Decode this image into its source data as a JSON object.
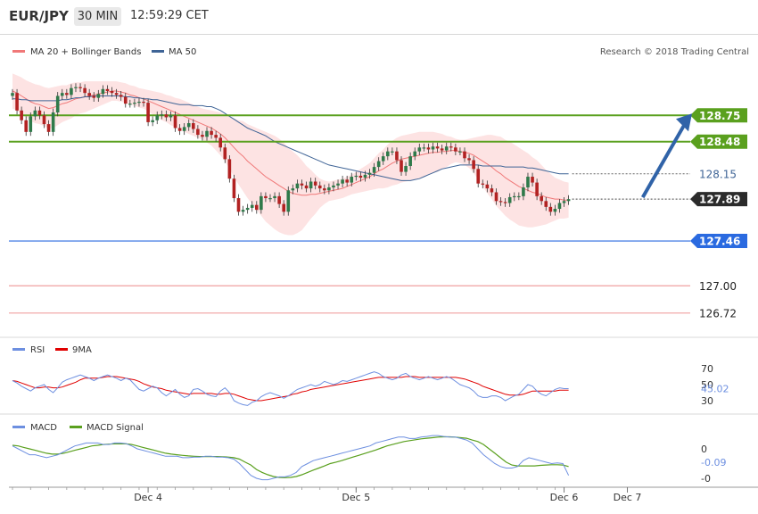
{
  "header": {
    "pair": "EUR/JPY",
    "timeframe": "30 MIN",
    "time": "12:59:29 CET"
  },
  "legend_main": {
    "bb_label": "MA 20 + Bollinger Bands",
    "ma50_label": "MA 50",
    "copyright": "Research © 2018 Trading Central"
  },
  "legend_rsi": {
    "rsi_label": "RSI",
    "ma_label": "9MA"
  },
  "legend_macd": {
    "macd_label": "MACD",
    "signal_label": "MACD Signal"
  },
  "colors": {
    "bb": "#f07878",
    "bb_fill": "#fde3e3",
    "ma50": "#3f6496",
    "bull": "#2f7a4a",
    "bear": "#b22222",
    "green_level": "#5aa01e",
    "blue_level": "#2a6ae0",
    "red_level": "#f0a0a0",
    "arrow": "#3063a8",
    "last": "#2b2b2b",
    "rsi": "#6d8fe0",
    "rsi_ma": "#e00000",
    "macd": "#6d8fe0",
    "macd_signal": "#5aa01e",
    "axis_text": "#333333"
  },
  "chart_data": [
    {
      "type": "candlestick",
      "title": "EUR/JPY",
      "series_names": [
        "MA 20 + Bollinger Bands",
        "MA 50"
      ],
      "levels": [
        {
          "value": 128.75,
          "label": "128.75",
          "style": "green"
        },
        {
          "value": 128.48,
          "label": "128.48",
          "style": "green"
        },
        {
          "value": 128.15,
          "label": "128.15",
          "style": "ma50"
        },
        {
          "value": 127.89,
          "label": "127.89",
          "style": "last"
        },
        {
          "value": 127.46,
          "label": "127.46",
          "style": "blue"
        },
        {
          "value": 127.0,
          "label": "127.00",
          "style": "red"
        },
        {
          "value": 126.72,
          "label": "126.72",
          "style": "red"
        }
      ],
      "arrow": {
        "from_bar": 139,
        "from_price": 127.89,
        "to_price": 128.75
      },
      "ylim": [
        126.6,
        129.0
      ],
      "close": [
        128.98,
        128.8,
        128.7,
        128.58,
        128.74,
        128.8,
        128.75,
        128.66,
        128.58,
        128.78,
        128.95,
        128.98,
        128.96,
        129.03,
        129.04,
        129.03,
        128.98,
        128.95,
        128.93,
        128.97,
        129.02,
        129.0,
        128.98,
        128.96,
        128.94,
        128.87,
        128.87,
        128.88,
        128.89,
        128.88,
        128.68,
        128.7,
        128.75,
        128.76,
        128.73,
        128.75,
        128.62,
        128.59,
        128.63,
        128.67,
        128.61,
        128.55,
        128.53,
        128.59,
        128.55,
        128.52,
        128.42,
        128.3,
        128.1,
        127.9,
        127.76,
        127.78,
        127.8,
        127.83,
        127.78,
        127.92,
        127.9,
        127.9,
        127.92,
        127.84,
        127.76,
        127.98,
        128.0,
        128.05,
        128.03,
        128.0,
        128.07,
        128.03,
        128.0,
        127.98,
        128.01,
        128.03,
        128.05,
        128.09,
        128.06,
        128.12,
        128.13,
        128.11,
        128.14,
        128.16,
        128.22,
        128.28,
        128.33,
        128.38,
        128.38,
        128.29,
        128.17,
        128.23,
        128.33,
        128.38,
        128.42,
        128.42,
        128.4,
        128.43,
        128.41,
        128.39,
        128.43,
        128.42,
        128.38,
        128.38,
        128.31,
        128.29,
        128.2,
        128.05,
        128.04,
        128.0,
        127.96,
        127.87,
        127.86,
        127.85,
        127.91,
        127.92,
        127.92,
        128.01,
        128.12,
        128.06,
        127.92,
        127.87,
        127.81,
        127.76,
        127.79,
        127.85,
        127.87,
        127.89
      ],
      "bb_mid": [
        129.0,
        128.98,
        128.95,
        128.92,
        128.89,
        128.87,
        128.86,
        128.84,
        128.82,
        128.83,
        128.85,
        128.87,
        128.88,
        128.9,
        128.92,
        128.93,
        128.94,
        128.95,
        128.96,
        128.97,
        128.98,
        128.99,
        129.0,
        129.0,
        128.99,
        128.98,
        128.96,
        128.95,
        128.93,
        128.92,
        128.9,
        128.88,
        128.86,
        128.84,
        128.82,
        128.8,
        128.78,
        128.76,
        128.74,
        128.72,
        128.7,
        128.68,
        128.66,
        128.64,
        128.62,
        128.59,
        128.56,
        128.52,
        128.47,
        128.42,
        128.37,
        128.33,
        128.28,
        128.24,
        128.2,
        128.16,
        128.12,
        128.09,
        128.06,
        128.03,
        128.0,
        127.97,
        127.95,
        127.94,
        127.93,
        127.93,
        127.94,
        127.94,
        127.95,
        127.96,
        127.97,
        127.98,
        127.99,
        128.0,
        128.02,
        128.04,
        128.06,
        128.08,
        128.1,
        128.12,
        128.15,
        128.18,
        128.2,
        128.23,
        128.26,
        128.28,
        128.3,
        128.31,
        128.32,
        128.33,
        128.34,
        128.35,
        128.36,
        128.37,
        128.37,
        128.38,
        128.38,
        128.39,
        128.39,
        128.38,
        128.37,
        128.36,
        128.34,
        128.31,
        128.28,
        128.25,
        128.22,
        128.18,
        128.15,
        128.11,
        128.08,
        128.05,
        128.02,
        128.0,
        127.98,
        127.96,
        127.95,
        127.93,
        127.91,
        127.9,
        127.89,
        127.89,
        127.88,
        127.88
      ],
      "bb_width": [
        0.18,
        0.18,
        0.19,
        0.19,
        0.2,
        0.2,
        0.2,
        0.2,
        0.21,
        0.21,
        0.2,
        0.19,
        0.18,
        0.18,
        0.17,
        0.16,
        0.16,
        0.15,
        0.14,
        0.13,
        0.12,
        0.11,
        0.1,
        0.1,
        0.1,
        0.1,
        0.1,
        0.1,
        0.1,
        0.1,
        0.11,
        0.12,
        0.13,
        0.14,
        0.14,
        0.15,
        0.15,
        0.16,
        0.16,
        0.16,
        0.16,
        0.16,
        0.16,
        0.17,
        0.18,
        0.2,
        0.22,
        0.24,
        0.27,
        0.3,
        0.33,
        0.36,
        0.38,
        0.4,
        0.42,
        0.44,
        0.46,
        0.47,
        0.48,
        0.48,
        0.47,
        0.45,
        0.43,
        0.4,
        0.36,
        0.3,
        0.25,
        0.2,
        0.15,
        0.12,
        0.1,
        0.1,
        0.1,
        0.1,
        0.1,
        0.1,
        0.11,
        0.12,
        0.13,
        0.14,
        0.16,
        0.18,
        0.2,
        0.22,
        0.23,
        0.24,
        0.24,
        0.24,
        0.24,
        0.24,
        0.24,
        0.23,
        0.22,
        0.21,
        0.2,
        0.18,
        0.16,
        0.14,
        0.12,
        0.12,
        0.13,
        0.15,
        0.18,
        0.22,
        0.26,
        0.3,
        0.33,
        0.36,
        0.38,
        0.39,
        0.4,
        0.4,
        0.4,
        0.39,
        0.38,
        0.36,
        0.34,
        0.31,
        0.28,
        0.25,
        0.22,
        0.2,
        0.19,
        0.18
      ],
      "ma50": [
        128.92,
        128.92,
        128.91,
        128.91,
        128.9,
        128.9,
        128.9,
        128.9,
        128.9,
        128.9,
        128.9,
        128.91,
        128.91,
        128.92,
        128.93,
        128.93,
        128.94,
        128.94,
        128.95,
        128.95,
        128.95,
        128.95,
        128.95,
        128.95,
        128.95,
        128.94,
        128.94,
        128.93,
        128.93,
        128.92,
        128.92,
        128.91,
        128.91,
        128.9,
        128.89,
        128.88,
        128.87,
        128.86,
        128.86,
        128.86,
        128.85,
        128.85,
        128.85,
        128.84,
        128.84,
        128.82,
        128.8,
        128.77,
        128.74,
        128.71,
        128.68,
        128.65,
        128.62,
        128.6,
        128.58,
        128.56,
        128.54,
        128.51,
        128.48,
        128.46,
        128.44,
        128.42,
        128.4,
        128.38,
        128.36,
        128.34,
        128.32,
        128.3,
        128.28,
        128.26,
        128.24,
        128.23,
        128.22,
        128.21,
        128.2,
        128.19,
        128.18,
        128.17,
        128.16,
        128.15,
        128.14,
        128.13,
        128.12,
        128.11,
        128.1,
        128.09,
        128.08,
        128.08,
        128.08,
        128.09,
        128.1,
        128.12,
        128.14,
        128.16,
        128.18,
        128.2,
        128.21,
        128.22,
        128.23,
        128.24,
        128.24,
        128.24,
        128.24,
        128.24,
        128.23,
        128.23,
        128.23,
        128.23,
        128.23,
        128.22,
        128.22,
        128.22,
        128.22,
        128.22,
        128.21,
        128.21,
        128.2,
        128.19,
        128.18,
        128.17,
        128.16,
        128.15,
        128.15,
        128.15
      ]
    },
    {
      "type": "line",
      "title": "RSI",
      "series_names": [
        "RSI",
        "9MA"
      ],
      "yticks": [
        70,
        50,
        30
      ],
      "last_value_label": "45.02",
      "ylim": [
        20,
        80
      ],
      "rsi": [
        55,
        52,
        48,
        45,
        42,
        46,
        48,
        50,
        44,
        40,
        46,
        53,
        56,
        58,
        60,
        62,
        60,
        58,
        55,
        58,
        60,
        62,
        60,
        58,
        55,
        58,
        56,
        50,
        44,
        42,
        45,
        48,
        46,
        40,
        36,
        40,
        44,
        38,
        34,
        36,
        44,
        45,
        42,
        38,
        36,
        35,
        42,
        46,
        40,
        30,
        27,
        25,
        24,
        28,
        30,
        35,
        38,
        40,
        38,
        36,
        33,
        36,
        40,
        44,
        46,
        48,
        50,
        48,
        50,
        54,
        52,
        50,
        52,
        55,
        54,
        56,
        58,
        60,
        62,
        64,
        66,
        64,
        60,
        58,
        56,
        58,
        62,
        64,
        60,
        58,
        56,
        58,
        60,
        58,
        56,
        58,
        60,
        58,
        54,
        50,
        48,
        46,
        42,
        36,
        34,
        34,
        36,
        36,
        34,
        30,
        33,
        36,
        38,
        44,
        50,
        48,
        42,
        38,
        36,
        40,
        44,
        46,
        45,
        45.02
      ],
      "rsi_ma": [
        55,
        54,
        52,
        50,
        48,
        46,
        46,
        47,
        47,
        46,
        46,
        47,
        49,
        51,
        53,
        56,
        58,
        58,
        58,
        58,
        59,
        60,
        60,
        60,
        59,
        58,
        57,
        56,
        54,
        51,
        49,
        47,
        46,
        45,
        43,
        42,
        41,
        40,
        39,
        38,
        39,
        39,
        39,
        39,
        39,
        38,
        38,
        39,
        39,
        38,
        36,
        34,
        32,
        31,
        30,
        30,
        31,
        32,
        33,
        34,
        35,
        36,
        38,
        39,
        41,
        42,
        44,
        45,
        46,
        47,
        48,
        49,
        50,
        51,
        52,
        53,
        54,
        55,
        56,
        57,
        58,
        59,
        59,
        59,
        59,
        59,
        59,
        60,
        60,
        60,
        59,
        59,
        59,
        59,
        59,
        59,
        59,
        59,
        59,
        58,
        57,
        55,
        53,
        51,
        48,
        46,
        44,
        42,
        40,
        38,
        37,
        37,
        37,
        38,
        40,
        42,
        42,
        42,
        42,
        42,
        42,
        43,
        43,
        43
      ]
    },
    {
      "type": "line",
      "title": "MACD",
      "series_names": [
        "MACD",
        "MACD Signal"
      ],
      "yticks": [
        0,
        -0.1
      ],
      "ytick_labels": [
        "0",
        "-0"
      ],
      "last_value_label": "-0.09",
      "ylim": [
        -0.13,
        0.05
      ],
      "macd": [
        0.01,
        0.0,
        -0.01,
        -0.02,
        -0.02,
        -0.025,
        -0.03,
        -0.025,
        -0.02,
        -0.01,
        0.0,
        0.01,
        0.015,
        0.02,
        0.02,
        0.02,
        0.015,
        0.015,
        0.02,
        0.02,
        0.018,
        0.01,
        0.0,
        -0.005,
        -0.01,
        -0.015,
        -0.02,
        -0.025,
        -0.025,
        -0.025,
        -0.03,
        -0.03,
        -0.028,
        -0.028,
        -0.025,
        -0.025,
        -0.028,
        -0.028,
        -0.03,
        -0.035,
        -0.05,
        -0.07,
        -0.09,
        -0.1,
        -0.105,
        -0.105,
        -0.1,
        -0.095,
        -0.095,
        -0.09,
        -0.08,
        -0.06,
        -0.05,
        -0.04,
        -0.035,
        -0.03,
        -0.025,
        -0.02,
        -0.015,
        -0.01,
        -0.005,
        0.0,
        0.005,
        0.01,
        0.02,
        0.025,
        0.03,
        0.035,
        0.04,
        0.04,
        0.035,
        0.035,
        0.04,
        0.042,
        0.045,
        0.045,
        0.042,
        0.04,
        0.04,
        0.035,
        0.03,
        0.02,
        0.0,
        -0.02,
        -0.035,
        -0.05,
        -0.06,
        -0.065,
        -0.065,
        -0.06,
        -0.04,
        -0.03,
        -0.035,
        -0.04,
        -0.045,
        -0.05,
        -0.048,
        -0.05,
        -0.09
      ],
      "macd_signal": [
        0.012,
        0.01,
        0.005,
        0.0,
        -0.005,
        -0.01,
        -0.015,
        -0.018,
        -0.018,
        -0.015,
        -0.01,
        -0.005,
        0.0,
        0.005,
        0.01,
        0.012,
        0.015,
        0.016,
        0.017,
        0.017,
        0.017,
        0.015,
        0.01,
        0.005,
        0.0,
        -0.005,
        -0.01,
        -0.015,
        -0.018,
        -0.02,
        -0.022,
        -0.024,
        -0.025,
        -0.026,
        -0.026,
        -0.026,
        -0.026,
        -0.027,
        -0.028,
        -0.03,
        -0.035,
        -0.045,
        -0.055,
        -0.07,
        -0.08,
        -0.088,
        -0.094,
        -0.097,
        -0.098,
        -0.097,
        -0.094,
        -0.088,
        -0.08,
        -0.072,
        -0.065,
        -0.058,
        -0.05,
        -0.045,
        -0.04,
        -0.034,
        -0.028,
        -0.022,
        -0.016,
        -0.01,
        -0.004,
        0.003,
        0.01,
        0.015,
        0.02,
        0.025,
        0.028,
        0.031,
        0.034,
        0.036,
        0.038,
        0.04,
        0.041,
        0.041,
        0.04,
        0.038,
        0.036,
        0.03,
        0.025,
        0.015,
        0.0,
        -0.015,
        -0.03,
        -0.045,
        -0.055,
        -0.058,
        -0.058,
        -0.058,
        -0.058,
        -0.056,
        -0.055,
        -0.054,
        -0.054,
        -0.055,
        -0.06
      ]
    }
  ],
  "x_axis": {
    "labels": [
      {
        "bar": 30,
        "text": "Dec 4"
      },
      {
        "bar": 76,
        "text": "Dec 5"
      },
      {
        "bar": 122,
        "text": "Dec 6"
      },
      {
        "bar": 136,
        "text": "Dec 7"
      }
    ]
  }
}
